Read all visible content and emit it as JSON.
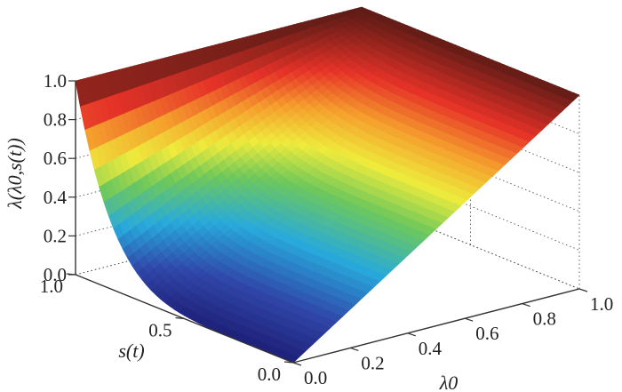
{
  "chart_data": {
    "type": "surface",
    "title": "",
    "xlabel": "λ0",
    "ylabel": "s(t)",
    "zlabel": "λ(λ0,s(t))",
    "x_ticks": [
      "0.0",
      "0.2",
      "0.4",
      "0.6",
      "0.8",
      "1.0"
    ],
    "y_ticks": [
      "0.0",
      "0.5",
      "1.0"
    ],
    "z_ticks": [
      "0.0",
      "0.2",
      "0.4",
      "0.6",
      "0.8",
      "1.0"
    ],
    "xlim": [
      0,
      1
    ],
    "ylim": [
      0,
      1
    ],
    "zlim": [
      0,
      1
    ],
    "colormap": "jet (dark blue → cyan → green → yellow → red → dark red)",
    "grid": "dotted on back panels",
    "surface_samples": {
      "lambda0": [
        0.0,
        0.25,
        0.5,
        0.75,
        1.0
      ],
      "s": [
        0.0,
        0.25,
        0.5,
        0.75,
        1.0
      ],
      "z": [
        [
          0.0,
          0.25,
          0.5,
          0.75,
          1.0
        ],
        [
          0.04,
          0.29,
          0.53,
          0.77,
          1.0
        ],
        [
          0.09,
          0.34,
          0.57,
          0.79,
          1.0
        ],
        [
          0.22,
          0.44,
          0.64,
          0.83,
          1.0
        ],
        [
          1.0,
          1.0,
          1.0,
          1.0,
          1.0
        ]
      ]
    }
  }
}
